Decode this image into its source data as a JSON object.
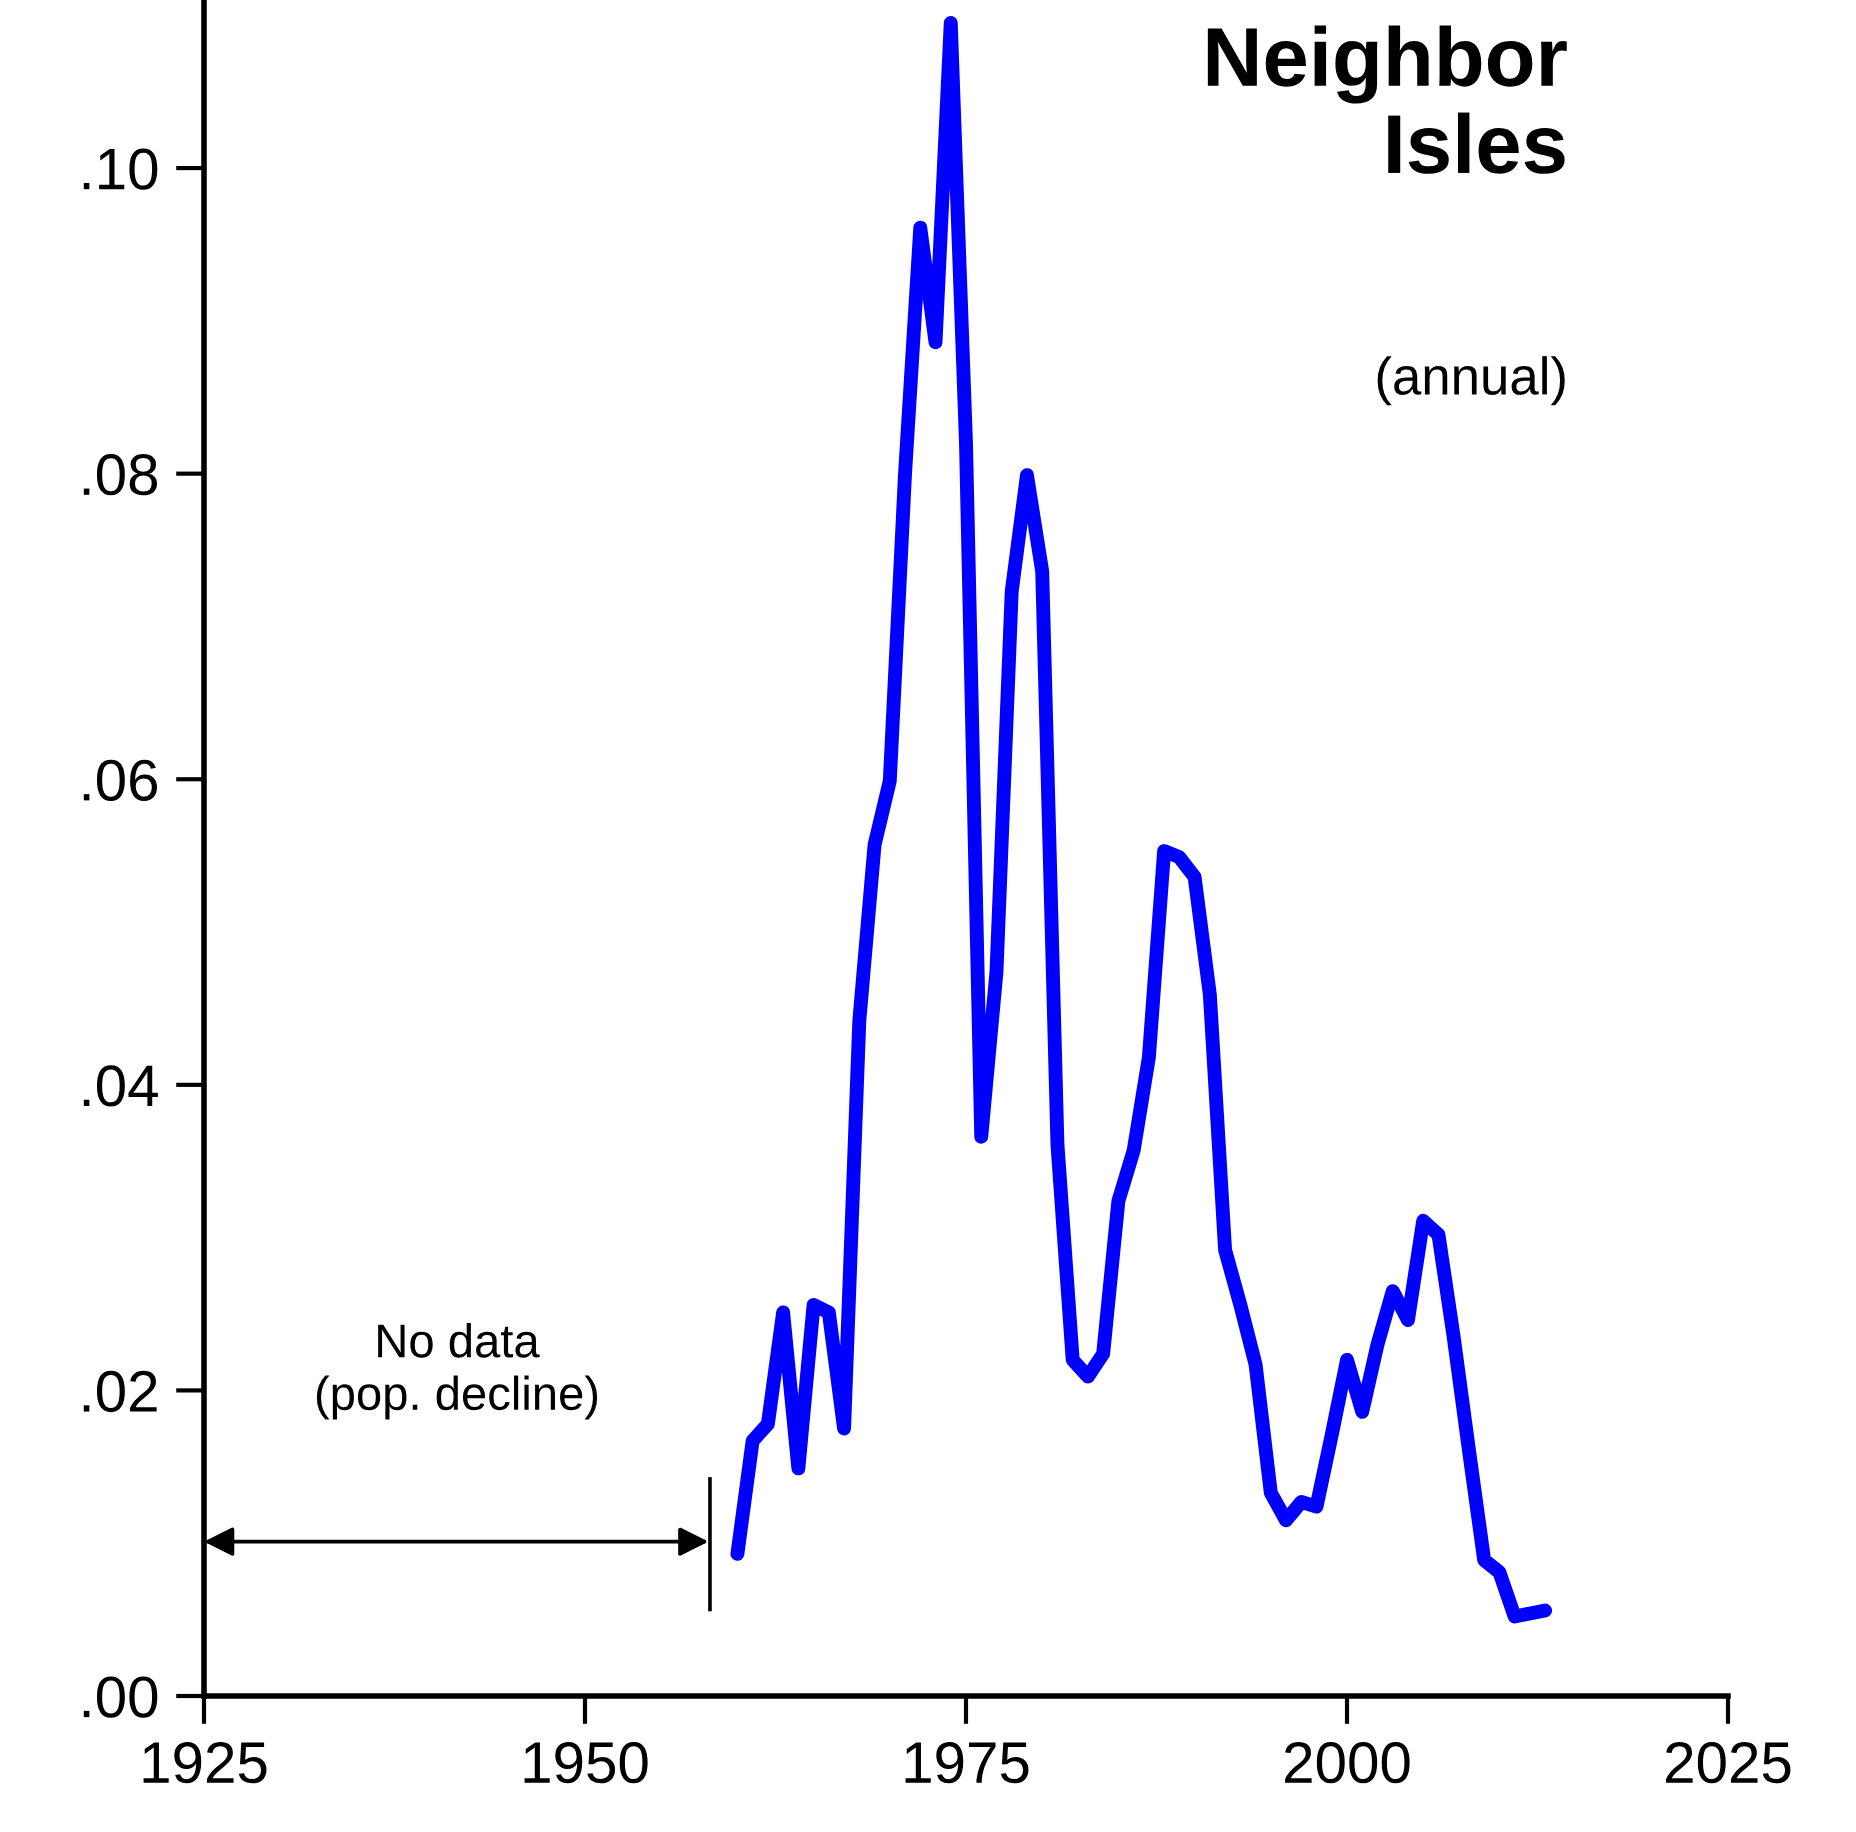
{
  "chart_data": {
    "type": "line",
    "title": "Neighbor\nIsles",
    "subtitle": "(annual)",
    "x": [
      1960,
      1961,
      1962,
      1963,
      1964,
      1965,
      1966,
      1967,
      1968,
      1969,
      1970,
      1971,
      1972,
      1973,
      1974,
      1975,
      1976,
      1977,
      1978,
      1979,
      1980,
      1981,
      1982,
      1983,
      1984,
      1985,
      1986,
      1987,
      1988,
      1989,
      1990,
      1991,
      1992,
      1993,
      1994,
      1995,
      1996,
      1997,
      1998,
      1999,
      2000,
      2001,
      2002,
      2003,
      2004,
      2005,
      2006,
      2007,
      2008,
      2009,
      2010,
      2011,
      2012,
      2013
    ],
    "series": [
      {
        "color": "#0000ff",
        "values": [
          0.0093,
          0.0167,
          0.0178,
          0.0251,
          0.0149,
          0.0256,
          0.0251,
          0.0175,
          0.0442,
          0.0557,
          0.0599,
          0.08,
          0.0961,
          0.0886,
          0.1095,
          0.082,
          0.0366,
          0.0474,
          0.0723,
          0.0799,
          0.0736,
          0.0361,
          0.022,
          0.0209,
          0.0224,
          0.0324,
          0.0357,
          0.0418,
          0.0553,
          0.0549,
          0.0536,
          0.0459,
          0.0292,
          0.0256,
          0.0217,
          0.0133,
          0.0115,
          0.0127,
          0.0124,
          0.0171,
          0.022,
          0.0186,
          0.023,
          0.0265,
          0.0246,
          0.0311,
          0.0302,
          0.0235,
          0.0161,
          0.0089,
          0.0081,
          0.0052,
          0.0054,
          0.0056
        ]
      }
    ],
    "xlim": [
      1925,
      2025
    ],
    "xticks": [
      1925,
      1950,
      1975,
      2000,
      2025
    ],
    "ylim": [
      0,
      0.111
    ],
    "yticks": [
      {
        "value": 0,
        "label": ".00"
      },
      {
        "value": 0.02,
        "label": ".02"
      },
      {
        "value": 0.04,
        "label": ".04"
      },
      {
        "value": 0.06,
        "label": ".06"
      },
      {
        "value": 0.08,
        "label": ".08"
      },
      {
        "value": 0.1,
        "label": ".10"
      }
    ],
    "annotations": [
      "No data\n(pop. decline)"
    ],
    "grid": false,
    "legend": false,
    "marker": "none",
    "line_style": "solid"
  }
}
